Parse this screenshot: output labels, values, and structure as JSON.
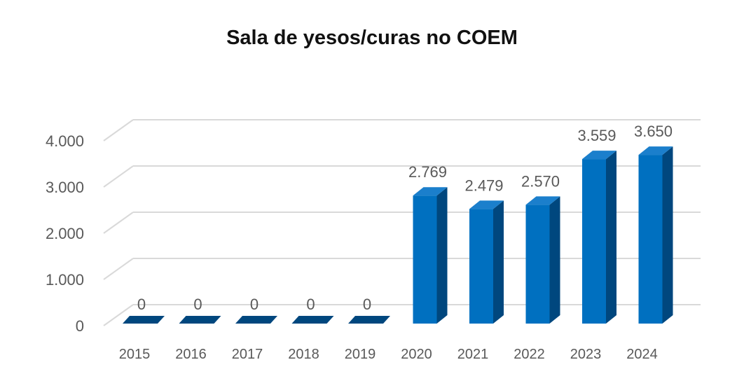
{
  "chart_data": {
    "type": "bar",
    "title": "Sala de yesos/curas no COEM",
    "categories": [
      "2015",
      "2016",
      "2017",
      "2018",
      "2019",
      "2020",
      "2021",
      "2022",
      "2023",
      "2024"
    ],
    "values": [
      0,
      0,
      0,
      0,
      0,
      2769,
      2479,
      2570,
      3559,
      3650
    ],
    "data_labels": [
      "0",
      "0",
      "0",
      "0",
      "0",
      "2.769",
      "2.479",
      "2.570",
      "3.559",
      "3.650"
    ],
    "y_ticks": [
      "0",
      "1.000",
      "2.000",
      "3.000",
      "4.000"
    ],
    "ylim": [
      0,
      4000
    ],
    "y_step": 1000,
    "grid": true,
    "style": "3d-column",
    "colors": {
      "front": "#0070c0",
      "side": "#00477e",
      "top": "#1b7fcc",
      "grid": "#d9d9d9",
      "text": "#595959"
    }
  }
}
